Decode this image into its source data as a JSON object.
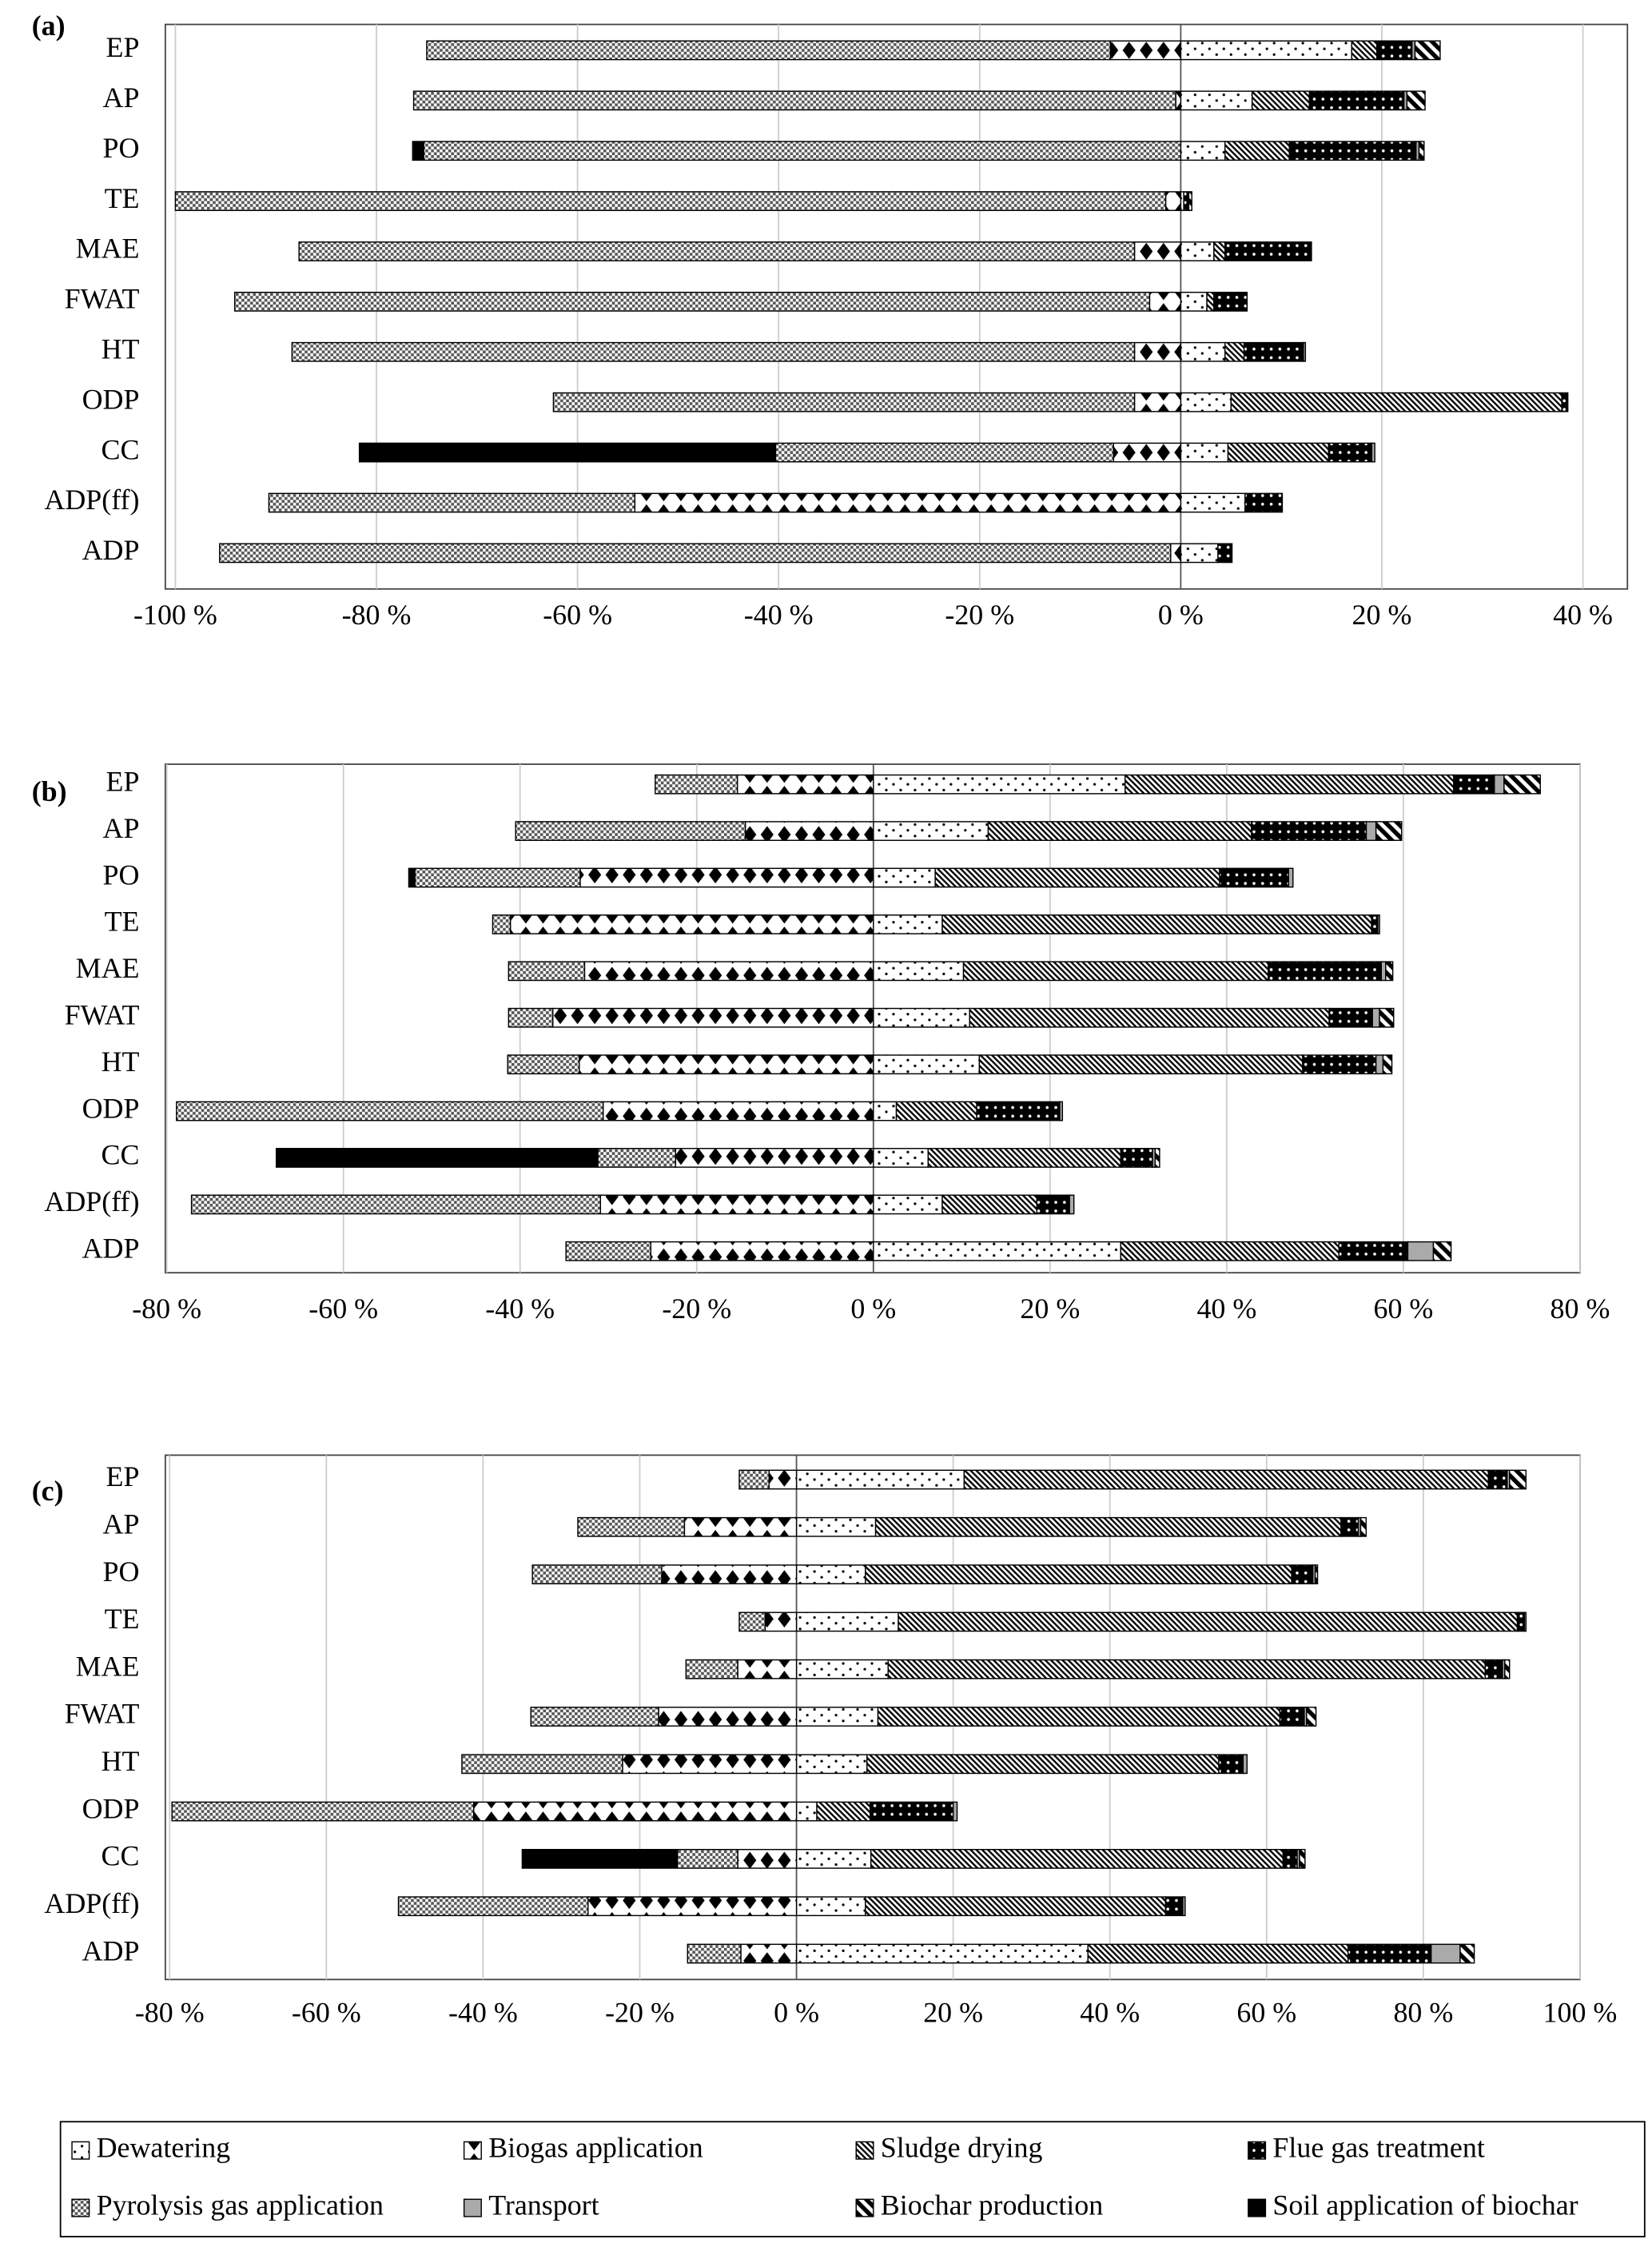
{
  "chart_data": [
    {
      "type": "bar",
      "orientation": "horizontal",
      "stacked": true,
      "panel": "(a)",
      "categories": [
        "EP",
        "AP",
        "PO",
        "TE",
        "MAE",
        "FWAT",
        "HT",
        "ODP",
        "CC",
        "ADP(ff)",
        "ADP"
      ],
      "xlim": [
        -100,
        40
      ],
      "xticks": [
        {
          "value": -100,
          "label": "-100 %"
        },
        {
          "value": -80,
          "label": "-80 %"
        },
        {
          "value": -60,
          "label": "-60 %"
        },
        {
          "value": -40,
          "label": "-40 %"
        },
        {
          "value": -20,
          "label": "-20 %"
        },
        {
          "value": 0,
          "label": "0 %"
        },
        {
          "value": 20,
          "label": "20 %"
        },
        {
          "value": 40,
          "label": "40 %"
        }
      ],
      "grid": true,
      "series": [
        {
          "values": [
            17,
            7.1,
            4.4,
            0.3,
            3.3,
            2.6,
            4.4,
            5,
            4.7,
            6.4,
            3.7
          ]
        },
        {
          "values": [
            -7,
            -0.5,
            0,
            -1.5,
            -4.6,
            -3.1,
            -4.6,
            -4.6,
            -6.7,
            -54.3,
            -1
          ]
        },
        {
          "values": [
            2.5,
            5.7,
            6.4,
            0,
            1.1,
            0.7,
            1.9,
            32.9,
            10,
            0,
            0
          ]
        },
        {
          "values": [
            3.5,
            9.4,
            12.6,
            0.5,
            8.6,
            3.3,
            5.9,
            0.6,
            4.3,
            3.7,
            1.4
          ]
        },
        {
          "values": [
            -68,
            -75.8,
            -75.3,
            -98.5,
            -83.1,
            -91,
            -83.8,
            -57.8,
            -33.6,
            -36.4,
            -94.6
          ]
        },
        {
          "values": [
            0.3,
            0.3,
            0.3,
            0,
            0,
            0,
            0.2,
            0,
            0.3,
            0,
            0
          ]
        },
        {
          "values": [
            2.5,
            1.8,
            0.5,
            0.3,
            0,
            0,
            0,
            0,
            0,
            0,
            0
          ]
        },
        {
          "values": [
            0,
            0,
            -1.1,
            0,
            0,
            0,
            0,
            0,
            -41.4,
            0,
            0
          ]
        }
      ]
    },
    {
      "type": "bar",
      "orientation": "horizontal",
      "stacked": true,
      "panel": "(b)",
      "categories": [
        "EP",
        "AP",
        "PO",
        "TE",
        "MAE",
        "FWAT",
        "HT",
        "ODP",
        "CC",
        "ADP(ff)",
        "ADP"
      ],
      "xlim": [
        -80,
        80
      ],
      "xticks": [
        {
          "value": -80,
          "label": "-80 %"
        },
        {
          "value": -60,
          "label": "-60 %"
        },
        {
          "value": -40,
          "label": "-40 %"
        },
        {
          "value": -20,
          "label": "-20 %"
        },
        {
          "value": 0,
          "label": "0 %"
        },
        {
          "value": 20,
          "label": "20 %"
        },
        {
          "value": 40,
          "label": "40 %"
        },
        {
          "value": 60,
          "label": "60 %"
        },
        {
          "value": 80,
          "label": "80 %"
        }
      ],
      "grid": true,
      "series": [
        {
          "values": [
            28.5,
            13,
            7,
            7.8,
            10.2,
            10.9,
            12,
            2.6,
            6.2,
            7.8,
            28
          ]
        },
        {
          "values": [
            -15.4,
            -14.5,
            -33.2,
            -41.1,
            -32.7,
            -36.3,
            -33.3,
            -30.6,
            -22.4,
            -30.9,
            -25.2
          ]
        },
        {
          "values": [
            37.2,
            29.8,
            32.2,
            48.6,
            34.5,
            40.7,
            36.6,
            9.1,
            21.8,
            10.7,
            24.7
          ]
        },
        {
          "values": [
            4.6,
            13,
            7.8,
            0.7,
            12.8,
            4.9,
            8.3,
            9.4,
            3.6,
            3.7,
            7.8
          ]
        },
        {
          "values": [
            -9.3,
            -26,
            -18.7,
            -2,
            -8.6,
            -5,
            -8.1,
            -48.3,
            -8.8,
            -46.3,
            -9.6
          ]
        },
        {
          "values": [
            1.1,
            1.1,
            0.5,
            0.2,
            0.5,
            0.8,
            0.8,
            0.3,
            0.3,
            0.5,
            2.9
          ]
        },
        {
          "values": [
            4.1,
            2.9,
            0,
            0,
            0.8,
            1.6,
            1,
            0,
            0.5,
            0,
            2
          ]
        },
        {
          "values": [
            0,
            0,
            -0.7,
            0,
            0,
            0,
            0,
            0,
            -36.4,
            0,
            0
          ]
        }
      ]
    },
    {
      "type": "bar",
      "orientation": "horizontal",
      "stacked": true,
      "panel": "(c)",
      "categories": [
        "EP",
        "AP",
        "PO",
        "TE",
        "MAE",
        "FWAT",
        "HT",
        "ODP",
        "CC",
        "ADP(ff)",
        "ADP"
      ],
      "xlim": [
        -80,
        100
      ],
      "xticks": [
        {
          "value": -80,
          "label": "-80 %"
        },
        {
          "value": -60,
          "label": "-60 %"
        },
        {
          "value": -40,
          "label": "-40 %"
        },
        {
          "value": -20,
          "label": "-20 %"
        },
        {
          "value": 0,
          "label": "0 %"
        },
        {
          "value": 20,
          "label": "20 %"
        },
        {
          "value": 40,
          "label": "40 %"
        },
        {
          "value": 60,
          "label": "60 %"
        },
        {
          "value": 80,
          "label": "80 %"
        },
        {
          "value": 100,
          "label": "100 %"
        }
      ],
      "grid": true,
      "series": [
        {
          "values": [
            21.4,
            10.1,
            8.8,
            13,
            11.7,
            10.4,
            9,
            2.6,
            9.5,
            8.8,
            37.2
          ]
        },
        {
          "values": [
            -3.5,
            -14.3,
            -17.2,
            -4,
            -7.5,
            -17.6,
            -22.2,
            -41.2,
            -7.5,
            -26.6,
            -7.1
          ]
        },
        {
          "values": [
            66.9,
            59.4,
            54.4,
            79,
            76.2,
            51.3,
            44.9,
            6.8,
            52.6,
            38.3,
            33.2
          ]
        },
        {
          "values": [
            2.4,
            2.2,
            2.7,
            0.9,
            2.2,
            3.1,
            3.1,
            10.6,
            1.8,
            2.2,
            10.6
          ]
        },
        {
          "values": [
            -3.8,
            -13.6,
            -16.5,
            -3.3,
            -6.6,
            -16.3,
            -20.5,
            -38.5,
            -7.7,
            -24.2,
            -6.8
          ]
        },
        {
          "values": [
            0.3,
            0.3,
            0.3,
            0.2,
            0.3,
            0.3,
            0.5,
            0.5,
            0.3,
            0.3,
            3.7
          ]
        },
        {
          "values": [
            2.1,
            0.7,
            0.3,
            0,
            0.6,
            1.2,
            0,
            0,
            0.7,
            0,
            1.8
          ]
        },
        {
          "values": [
            0,
            0,
            0,
            0,
            0,
            0,
            0,
            0,
            -19.8,
            0,
            0
          ]
        }
      ]
    }
  ],
  "legend": {
    "position": "bottom",
    "items": [
      {
        "name": "Dewatering",
        "pattern": "dots"
      },
      {
        "name": "Biogas application",
        "pattern": "diamonds"
      },
      {
        "name": "Sludge drying",
        "pattern": "hatch"
      },
      {
        "name": "Flue gas treatment",
        "pattern": "dark-dots"
      },
      {
        "name": "Pyrolysis gas application",
        "pattern": "checker"
      },
      {
        "name": "Transport",
        "pattern": "grey"
      },
      {
        "name": "Biochar production",
        "pattern": "stripes"
      },
      {
        "name": "Soil application of biochar",
        "pattern": "black"
      }
    ]
  }
}
